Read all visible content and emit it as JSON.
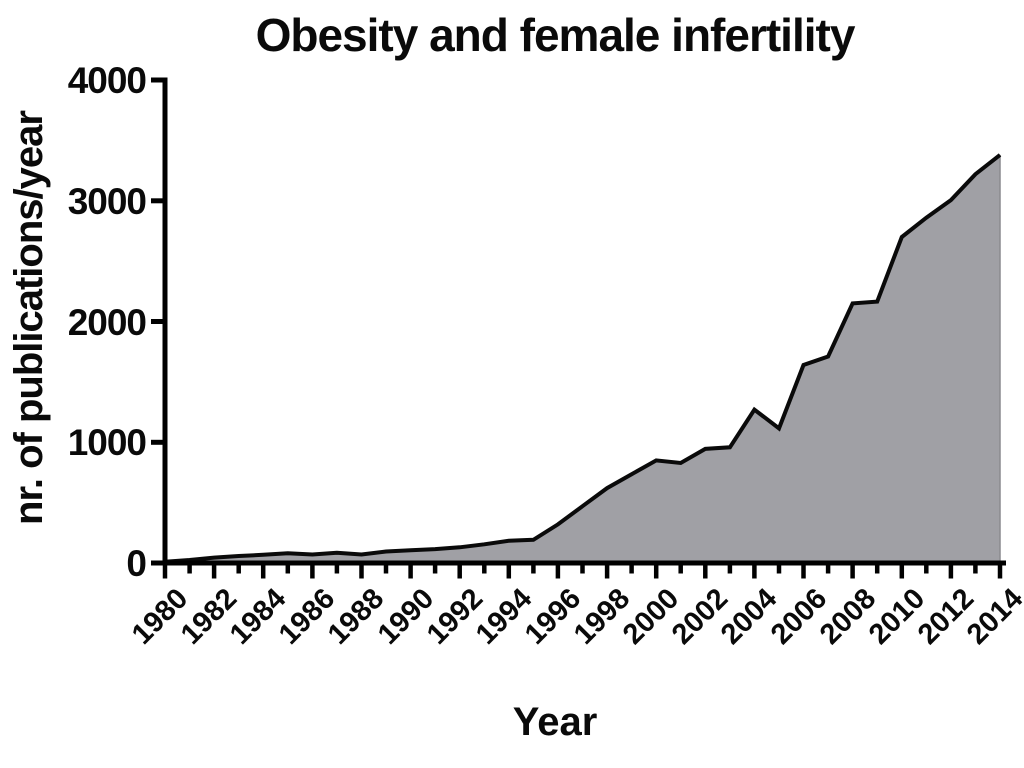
{
  "chart_data": {
    "type": "area",
    "title": "Obesity and female infertility",
    "xlabel": "Year",
    "ylabel": "nr. of publications/year",
    "ylim": [
      0,
      4000
    ],
    "yticks": [
      0,
      1000,
      2000,
      3000,
      4000
    ],
    "ytick_labels": [
      "0",
      "1000",
      "2000",
      "3000",
      "4000"
    ],
    "xtick_label_years": [
      1980,
      1982,
      1984,
      1986,
      1988,
      1990,
      1992,
      1994,
      1996,
      1998,
      2000,
      2002,
      2004,
      2006,
      2008,
      2010,
      2012,
      2014
    ],
    "xtick_labels": [
      "1980",
      "1982",
      "1984",
      "1986",
      "1988",
      "1990",
      "1992",
      "1994",
      "1996",
      "1998",
      "2000",
      "2002",
      "2004",
      "2006",
      "2008",
      "2010",
      "2012",
      "2014"
    ],
    "minor_xticks_every_year": true,
    "grid": false,
    "legend": "none",
    "years": [
      1980,
      1981,
      1982,
      1983,
      1984,
      1985,
      1986,
      1987,
      1988,
      1989,
      1990,
      1991,
      1992,
      1993,
      1994,
      1995,
      1996,
      1997,
      1998,
      1999,
      2000,
      2001,
      2002,
      2003,
      2004,
      2005,
      2006,
      2007,
      2008,
      2009,
      2010,
      2011,
      2012,
      2013,
      2014
    ],
    "values": [
      10,
      25,
      45,
      58,
      68,
      80,
      70,
      85,
      70,
      95,
      105,
      115,
      130,
      155,
      185,
      192,
      320,
      470,
      620,
      735,
      850,
      828,
      945,
      958,
      1270,
      1115,
      1640,
      1710,
      2150,
      2165,
      2700,
      2860,
      3005,
      3220,
      3380
    ],
    "colors": {
      "fill": "#a0a0a5",
      "fill_edge": "#8a8a8f",
      "line": "#0a0a0a",
      "axis": "#000000",
      "text": "#0a0a0a",
      "background": "#ffffff"
    }
  }
}
